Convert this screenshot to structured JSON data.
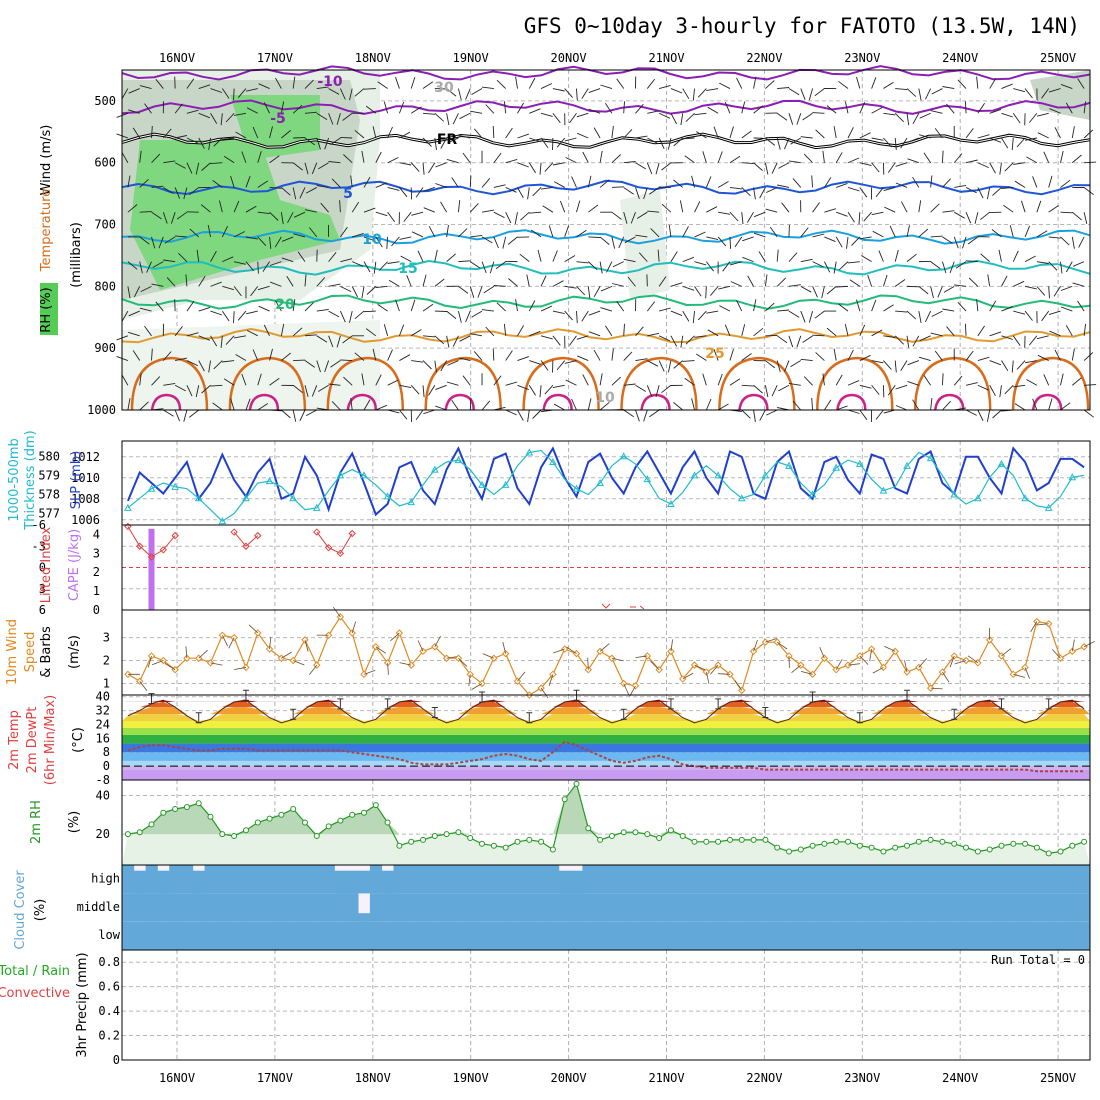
{
  "title": "GFS 0~10day 3-hourly for FATOTO (13.5W, 14N)",
  "colors": {
    "rh_fill": "#55cc55",
    "temp_purple": "#8a1fb4",
    "temp_blue": "#1f55d8",
    "temp_cyan": "#1aa0dd",
    "temp_teal": "#22bdbd",
    "temp_green": "#22bb77",
    "temp_orange": "#e09a30",
    "temp_dark_orange": "#d86c1a",
    "temp_magenta": "#cc2288",
    "slp": "#1f3fcf",
    "thickness": "#22bbcc",
    "lifted_index": "#e04040",
    "cape": "#c070f0",
    "wind": "#e08a20",
    "rh2m": "#229922",
    "cloud": "#62a8d8",
    "dewpt": "#aa4444"
  },
  "chart_data": [
    {
      "type": "contour",
      "panel": "upper-air",
      "xlabel": "",
      "ylabel": "Wind (m/s)",
      "ylabel_parts": [
        "RH (%)",
        "Temperature (°C)",
        "Wind (m/s)",
        "(millibars)"
      ],
      "x": [
        "16NOV",
        "17NOV",
        "18NOV",
        "19NOV",
        "20NOV",
        "21NOV",
        "22NOV",
        "23NOV",
        "24NOV",
        "25NOV"
      ],
      "y_ticks": [
        500,
        600,
        700,
        800,
        900,
        1000
      ],
      "ylim": [
        1000,
        450
      ],
      "contour_labels": [
        "-10",
        "-5",
        "FR",
        "5",
        "10",
        "15",
        "20",
        "25",
        "30",
        "10"
      ],
      "isotherms": [
        {
          "name": "-10",
          "level_mb": 455
        },
        {
          "name": "-5",
          "level_mb": 510
        },
        {
          "name": "FR",
          "level_mb": 565
        },
        {
          "name": "5",
          "level_mb": 640
        },
        {
          "name": "10",
          "level_mb": 720
        },
        {
          "name": "15",
          "level_mb": 770
        },
        {
          "name": "20",
          "level_mb": 825
        },
        {
          "name": "25",
          "level_mb": 880
        }
      ]
    },
    {
      "type": "line",
      "panel": "slp-thickness",
      "ylabel": "1000-500mb Thickness (dm)",
      "ylabel2": "SLP (mb)",
      "left_ticks": [
        577,
        578,
        579,
        580
      ],
      "right_ticks": [
        1006,
        1008,
        1010,
        1012
      ],
      "series": [
        {
          "name": "SLP (mb)",
          "axis": "right",
          "values": [
            1007.8,
            1010.5,
            1009.5,
            1008.5,
            1010.0,
            1011.5,
            1008.0,
            1009.5,
            1012.2,
            1009.8,
            1008.2,
            1010.5,
            1011.8,
            1008.0,
            1008.5,
            1012.0,
            1010.2,
            1007.0,
            1010.5,
            1012.3,
            1009.5,
            1006.5,
            1007.5,
            1011.0,
            1011.5,
            1008.8,
            1007.5,
            1010.8,
            1012.8,
            1010.0,
            1008.0,
            1011.8,
            1012.3,
            1009.0,
            1007.5,
            1011.0,
            1012.8,
            1010.0,
            1008.2,
            1011.5,
            1012.3,
            1010.0,
            1008.5,
            1011.0,
            1012.5,
            1010.5,
            1008.5,
            1011.0,
            1012.5,
            1010.0,
            1008.5,
            1012.5,
            1012.0,
            1008.5,
            1008.0,
            1011.5,
            1012.5,
            1009.0,
            1008.0,
            1011.5,
            1012.0,
            1009.8,
            1008.5,
            1012.2,
            1011.8,
            1009.0,
            1008.5,
            1011.8,
            1012.5,
            1009.5,
            1008.5,
            1012.0,
            1012.0,
            1010.0,
            1008.5,
            1012.8,
            1011.5,
            1008.8,
            1009.5,
            1011.8,
            1011.8,
            1011.0
          ]
        },
        {
          "name": "1000-500mb Thickness (dm)",
          "axis": "left",
          "values": [
            577.3,
            577.8,
            578.3,
            578.6,
            578.4,
            578.3,
            577.8,
            577.2,
            576.6,
            577.0,
            577.8,
            578.6,
            578.7,
            578.4,
            577.8,
            577.2,
            577.3,
            578.2,
            579.0,
            579.3,
            579.0,
            578.5,
            577.9,
            577.4,
            577.6,
            578.5,
            579.3,
            579.7,
            579.8,
            579.3,
            578.5,
            578.0,
            578.5,
            579.5,
            580.2,
            580.3,
            579.7,
            578.8,
            578.3,
            578.0,
            578.6,
            579.5,
            580.0,
            579.6,
            578.8,
            577.8,
            577.5,
            578.1,
            579.0,
            579.5,
            579.0,
            578.3,
            577.8,
            578.0,
            579.0,
            579.7,
            579.5,
            578.6,
            578.0,
            578.5,
            579.4,
            579.8,
            579.6,
            578.8,
            578.2,
            578.4,
            579.5,
            580.2,
            579.9,
            579.0,
            578.0,
            577.5,
            577.8,
            578.9,
            579.6,
            579.0,
            577.8,
            577.4,
            577.3,
            577.9,
            578.9,
            579.0
          ]
        }
      ]
    },
    {
      "type": "line",
      "panel": "stability",
      "ylabel": "Lifted Index",
      "ylabel2": "CAPE (J/kg)",
      "left_ticks": [
        -6,
        -3,
        0,
        3,
        6
      ],
      "left_tick_labels": [
        "-6",
        "-3",
        "0",
        "3",
        "6"
      ],
      "right_ticks": [
        0,
        1,
        2,
        3,
        4
      ],
      "cape_bar": {
        "time_index": 2,
        "value": 4.3
      },
      "series": [
        {
          "name": "Lifted Index",
          "values": [
            5.8,
            3.0,
            1.5,
            2.5,
            4.5,
            null,
            null,
            null,
            null,
            5.0,
            3.0,
            4.5,
            null,
            null,
            null,
            null,
            5.0,
            2.8,
            2.0,
            4.8,
            null,
            null,
            null,
            null,
            null,
            null,
            null,
            null,
            null,
            null,
            null,
            null,
            null,
            null,
            null,
            null,
            null,
            null,
            null,
            null,
            null,
            null,
            null,
            null,
            null,
            null,
            null,
            null,
            null,
            null,
            null,
            null,
            null,
            null,
            null,
            null,
            null,
            null,
            null,
            null,
            null,
            null,
            null,
            null,
            null,
            null,
            null,
            null,
            null,
            null,
            null,
            null,
            null,
            null,
            null,
            null,
            null,
            null,
            null,
            null,
            null,
            null
          ]
        }
      ]
    },
    {
      "type": "line",
      "panel": "wind-10m",
      "ylabel": "10m Wind Speed & Barbs (m/s)",
      "y_ticks": [
        1,
        2,
        3
      ],
      "series": [
        {
          "name": "10m Wind Speed",
          "values": [
            1.4,
            1.1,
            2.2,
            2.0,
            1.6,
            2.1,
            2.1,
            1.9,
            3.1,
            3.0,
            1.7,
            3.2,
            2.5,
            2.1,
            2.0,
            2.9,
            1.8,
            3.1,
            3.9,
            3.2,
            1.4,
            2.6,
            1.9,
            3.2,
            1.8,
            2.4,
            2.6,
            2.1,
            2.1,
            1.4,
            1.0,
            2.1,
            2.3,
            1.1,
            0.5,
            0.8,
            1.4,
            2.5,
            2.3,
            1.6,
            2.4,
            2.1,
            1.0,
            0.9,
            2.2,
            1.6,
            2.4,
            1.2,
            1.8,
            1.5,
            1.8,
            1.4,
            0.7,
            2.4,
            2.8,
            2.8,
            2.2,
            1.8,
            1.4,
            2.1,
            1.6,
            1.8,
            2.2,
            2.5,
            1.7,
            2.4,
            1.5,
            1.7,
            0.8,
            1.5,
            2.2,
            2.0,
            1.9,
            2.9,
            2.2,
            1.4,
            1.7,
            3.7,
            3.6,
            2.1,
            2.4,
            2.6
          ]
        }
      ]
    },
    {
      "type": "area",
      "panel": "temp-dewpt",
      "ylabel": "2m Temp 2m DewPt (6hr Min/Max) (°C)",
      "y_ticks": [
        -8,
        0,
        8,
        16,
        24,
        32,
        40
      ],
      "series": [
        {
          "name": "2m Temp",
          "values": [
            29,
            32,
            36,
            38,
            34,
            29,
            25,
            27,
            33,
            37,
            38,
            33,
            28,
            25,
            27,
            33,
            37,
            38,
            33,
            28,
            25,
            27,
            33,
            37,
            38,
            33,
            28,
            25,
            27,
            33,
            37,
            38,
            33,
            28,
            25,
            27,
            33,
            37,
            38,
            33,
            28,
            25,
            27,
            33,
            37,
            38,
            33,
            28,
            25,
            27,
            33,
            37,
            38,
            33,
            28,
            25,
            27,
            33,
            37,
            38,
            33,
            28,
            25,
            27,
            33,
            37,
            38,
            33,
            28,
            25,
            27,
            33,
            37,
            38,
            33,
            28,
            25,
            27,
            33,
            37,
            38,
            33
          ]
        },
        {
          "name": "2m DewPt",
          "values": [
            9,
            11,
            12,
            12,
            11,
            10,
            9,
            9,
            10,
            10,
            10,
            9,
            9,
            9,
            9,
            9,
            9,
            9,
            9,
            8,
            7,
            6,
            5,
            4,
            2,
            1,
            1,
            1,
            2,
            3,
            4,
            6,
            7,
            6,
            4,
            3,
            8,
            14,
            12,
            9,
            6,
            3,
            2,
            3,
            5,
            6,
            4,
            1,
            0,
            -1,
            -1,
            -1,
            -1,
            -1,
            -2,
            -2,
            -2,
            -2,
            -2,
            -2,
            -2,
            -2,
            -2,
            -2,
            -2,
            -2,
            -2,
            -2,
            -2,
            -2,
            -2,
            -2,
            -2,
            -2,
            -2,
            -2,
            -2,
            -3,
            -3,
            -3,
            -3,
            -3
          ]
        }
      ]
    },
    {
      "type": "area",
      "panel": "rh-2m",
      "ylabel": "2m RH (%)",
      "y_ticks": [
        20,
        40
      ],
      "series": [
        {
          "name": "2m RH",
          "values": [
            20,
            21,
            25,
            31,
            33,
            34,
            36,
            29,
            20,
            19,
            22,
            26,
            28,
            30,
            33,
            26,
            19,
            24,
            27,
            30,
            31,
            35,
            26,
            14,
            16,
            17,
            19,
            20,
            21,
            18,
            15,
            14,
            13,
            16,
            17,
            16,
            12,
            38,
            46,
            23,
            17,
            19,
            21,
            21,
            20,
            18,
            22,
            19,
            16,
            16,
            16,
            17,
            17,
            17,
            17,
            13,
            11,
            12,
            14,
            15,
            16,
            16,
            14,
            13,
            11,
            13,
            14,
            16,
            17,
            16,
            15,
            13,
            11,
            12,
            14,
            15,
            15,
            13,
            10,
            11,
            14,
            16
          ]
        }
      ]
    },
    {
      "type": "bar",
      "panel": "cloud-cover",
      "ylabel": "Cloud Cover (%)",
      "y_tick_labels": [
        "high",
        "middle",
        "low"
      ],
      "series": [
        {
          "name": "high cover",
          "values": [
            100,
            80,
            100,
            80,
            100,
            100,
            80,
            100,
            100,
            100,
            100,
            100,
            100,
            100,
            100,
            100,
            100,
            100,
            80,
            80,
            80,
            100,
            80,
            100,
            100,
            100,
            100,
            100,
            100,
            100,
            100,
            100,
            100,
            100,
            100,
            100,
            100,
            80,
            80,
            100,
            100,
            100,
            100,
            100,
            100,
            100,
            100,
            100,
            100,
            100,
            100,
            100,
            100,
            100,
            100,
            100,
            100,
            100,
            100,
            100,
            100,
            100,
            100,
            100,
            100,
            100,
            100,
            100,
            100,
            100,
            100,
            100,
            100,
            100,
            100,
            100,
            100,
            100,
            100,
            100,
            100,
            100
          ]
        },
        {
          "name": "middle cover",
          "values": [
            100,
            100,
            100,
            100,
            100,
            100,
            100,
            100,
            100,
            100,
            100,
            100,
            100,
            100,
            100,
            100,
            100,
            100,
            100,
            100,
            30,
            100,
            100,
            100,
            100,
            100,
            100,
            100,
            100,
            100,
            100,
            100,
            100,
            100,
            100,
            100,
            100,
            100,
            100,
            100,
            100,
            100,
            100,
            100,
            100,
            100,
            100,
            100,
            100,
            100,
            100,
            100,
            100,
            100,
            100,
            100,
            100,
            100,
            100,
            100,
            100,
            100,
            100,
            100,
            100,
            100,
            100,
            100,
            100,
            100,
            100,
            100,
            100,
            100,
            100,
            100,
            100,
            100,
            100,
            100,
            100,
            100
          ]
        },
        {
          "name": "low cover",
          "values": [
            100,
            100,
            100,
            100,
            100,
            100,
            100,
            100,
            100,
            100,
            100,
            100,
            100,
            100,
            100,
            100,
            100,
            100,
            100,
            100,
            100,
            100,
            100,
            100,
            100,
            100,
            100,
            100,
            100,
            100,
            100,
            100,
            100,
            100,
            100,
            100,
            100,
            100,
            100,
            100,
            100,
            100,
            100,
            100,
            100,
            100,
            100,
            100,
            100,
            100,
            100,
            100,
            100,
            100,
            100,
            100,
            100,
            100,
            100,
            100,
            100,
            100,
            100,
            100,
            100,
            100,
            100,
            100,
            100,
            100,
            100,
            100,
            100,
            100,
            100,
            100,
            100,
            100,
            100,
            100,
            100,
            100
          ]
        }
      ]
    },
    {
      "type": "bar",
      "panel": "precip",
      "ylabel": "3hr Precip (mm)",
      "legend_labels": [
        "Total / Rain",
        "Convective"
      ],
      "y_ticks": [
        0,
        0.2,
        0.4,
        0.6,
        0.8
      ],
      "ylim": [
        0,
        0.9
      ],
      "annotation": "Run Total = 0",
      "series": [
        {
          "name": "Total / Rain",
          "values": []
        },
        {
          "name": "Convective",
          "values": []
        }
      ]
    }
  ]
}
